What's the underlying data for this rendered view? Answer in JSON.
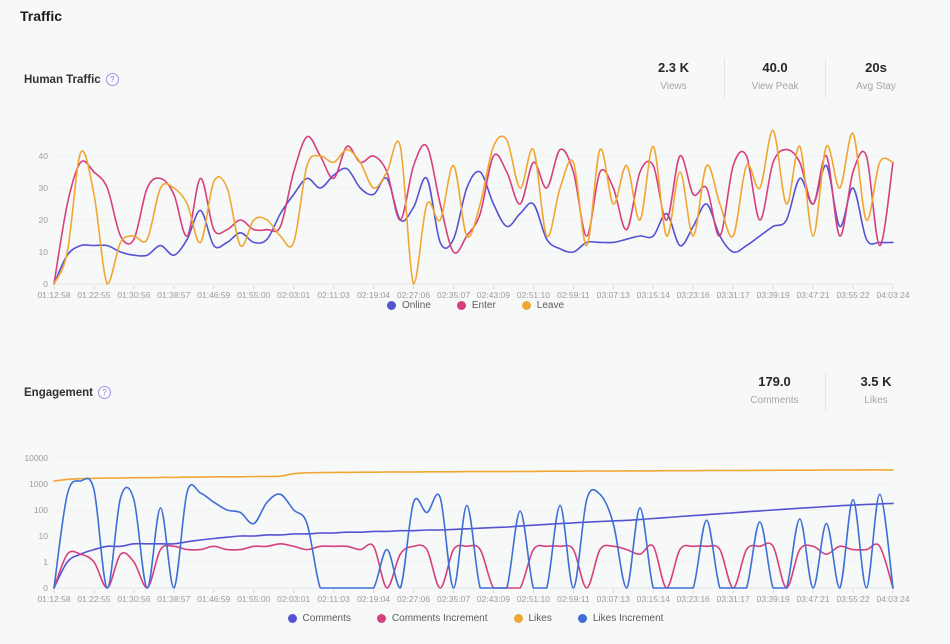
{
  "page": {
    "title": "Traffic"
  },
  "help_icon_glyph": "?",
  "colors": {
    "indigo": "#5553d2",
    "pink": "#d5407f",
    "orange": "#f0a732",
    "blue": "#3e6fd6",
    "axis_text": "#9b9ba1",
    "grid": "#efeff1",
    "baseline": "#e3e3e6"
  },
  "human_traffic": {
    "title": "Human Traffic",
    "stats": [
      {
        "value": "2.3 K",
        "label": "Views"
      },
      {
        "value": "40.0",
        "label": "View Peak"
      },
      {
        "value": "20s",
        "label": "Avg Stay"
      }
    ]
  },
  "engagement": {
    "title": "Engagement",
    "stats": [
      {
        "value": "179.0",
        "label": "Comments"
      },
      {
        "value": "3.5 K",
        "label": "Likes"
      }
    ]
  },
  "chart_data": [
    {
      "type": "line",
      "title": "Human Traffic",
      "scale": "linear",
      "grid": true,
      "legend_position": "bottom",
      "ylim": [
        0,
        50
      ],
      "yticks": [
        0,
        10,
        20,
        30,
        40
      ],
      "x": [
        "01:12:58",
        "01:22:55",
        "01:30:56",
        "01:38:57",
        "01:46:59",
        "01:55:00",
        "02:03:01",
        "02:11:03",
        "02:19:04",
        "02:27:06",
        "02:35:07",
        "02:43:09",
        "02:51:10",
        "02:59:11",
        "03:07:13",
        "03:15:14",
        "03:23:16",
        "03:31:17",
        "03:39:19",
        "03:47:21",
        "03:55:22",
        "04:03:24"
      ],
      "series": [
        {
          "name": "Online",
          "color": "#5553d2",
          "values": [
            0,
            9,
            12,
            12,
            12,
            10,
            9,
            9,
            12,
            9,
            14,
            23,
            12,
            13,
            16,
            13,
            14,
            22,
            28,
            33,
            30,
            34,
            36,
            30,
            28,
            33,
            20,
            24,
            33,
            13,
            14,
            30,
            35,
            25,
            18,
            22,
            25,
            14,
            11,
            10,
            13,
            13,
            13,
            14,
            15,
            15,
            22,
            12,
            18,
            25,
            15,
            10,
            12,
            15,
            18,
            20,
            33,
            25,
            37,
            18,
            30,
            14,
            13,
            13
          ]
        },
        {
          "name": "Enter",
          "color": "#d5407f",
          "values": [
            0,
            25,
            38,
            35,
            30,
            15,
            14,
            30,
            33,
            28,
            15,
            33,
            17,
            17,
            20,
            17,
            17,
            18,
            35,
            46,
            40,
            33,
            43,
            38,
            40,
            35,
            20,
            37,
            43,
            25,
            10,
            15,
            22,
            40,
            35,
            25,
            38,
            30,
            42,
            35,
            15,
            35,
            30,
            17,
            35,
            37,
            20,
            40,
            28,
            30,
            15,
            37,
            40,
            20,
            38,
            42,
            38,
            25,
            40,
            15,
            35,
            40,
            12,
            38
          ]
        },
        {
          "name": "Leave",
          "color": "#f0a732",
          "values": [
            0,
            10,
            41,
            28,
            0,
            13,
            15,
            14,
            30,
            30,
            25,
            13,
            32,
            30,
            12,
            20,
            20,
            15,
            13,
            37,
            40,
            38,
            42,
            38,
            30,
            35,
            43,
            0,
            25,
            20,
            37,
            15,
            25,
            43,
            45,
            30,
            42,
            15,
            30,
            38,
            12,
            42,
            25,
            37,
            20,
            43,
            15,
            35,
            15,
            37,
            25,
            15,
            37,
            30,
            48,
            25,
            43,
            15,
            43,
            30,
            47,
            20,
            38,
            38
          ]
        }
      ]
    },
    {
      "type": "line",
      "title": "Engagement",
      "scale": "log",
      "grid": true,
      "legend_position": "bottom",
      "ylim": [
        0,
        10000
      ],
      "yticks": [
        0,
        1,
        10,
        100,
        1000,
        10000
      ],
      "x": [
        "01:12:58",
        "01:22:55",
        "01:30:56",
        "01:38:57",
        "01:46:59",
        "01:55:00",
        "02:03:01",
        "02:11:03",
        "02:19:04",
        "02:27:06",
        "02:35:07",
        "02:43:09",
        "02:51:10",
        "02:59:11",
        "03:07:13",
        "03:15:14",
        "03:23:16",
        "03:31:17",
        "03:39:19",
        "03:47:21",
        "03:55:22",
        "04:03:24"
      ],
      "series": [
        {
          "name": "Comments",
          "color": "#5553d2",
          "values": [
            0,
            1,
            2,
            3,
            4,
            4,
            5,
            5,
            5,
            5,
            6,
            7,
            8,
            9,
            10,
            10,
            11,
            11,
            12,
            12,
            13,
            13,
            14,
            14,
            15,
            15,
            16,
            16,
            17,
            17,
            18,
            19,
            20,
            21,
            22,
            24,
            26,
            28,
            30,
            32,
            34,
            36,
            38,
            40,
            43,
            47,
            51,
            56,
            61,
            66,
            72,
            78,
            85,
            92,
            100,
            108,
            117,
            126,
            135,
            145,
            155,
            164,
            172,
            179
          ]
        },
        {
          "name": "Comments Increment",
          "color": "#d5407f",
          "values": [
            0,
            2,
            2,
            1,
            0,
            2,
            1,
            0,
            3,
            4,
            3,
            3,
            4,
            3,
            3,
            4,
            4,
            5,
            4,
            3,
            4,
            4,
            4,
            3,
            4,
            0,
            2,
            4,
            3,
            0,
            3,
            4,
            3,
            0,
            0,
            0,
            3,
            4,
            4,
            3,
            0,
            3,
            4,
            3,
            2,
            4,
            0,
            3,
            4,
            4,
            3,
            0,
            3,
            4,
            4,
            0,
            3,
            4,
            2,
            4,
            3,
            3,
            4,
            0
          ]
        },
        {
          "name": "Likes",
          "color": "#f0a732",
          "values": [
            1300,
            1500,
            1600,
            1650,
            1700,
            1700,
            1750,
            1750,
            1800,
            1800,
            1850,
            1850,
            1900,
            1900,
            1900,
            1950,
            1950,
            2000,
            2500,
            2700,
            2750,
            2800,
            2800,
            2850,
            2850,
            2900,
            2900,
            2900,
            2950,
            2950,
            2950,
            3000,
            3000,
            3000,
            3000,
            3050,
            3050,
            3100,
            3100,
            3100,
            3150,
            3150,
            3150,
            3200,
            3200,
            3200,
            3250,
            3250,
            3250,
            3300,
            3300,
            3300,
            3300,
            3350,
            3350,
            3400,
            3400,
            3400,
            3450,
            3450,
            3450,
            3500,
            3500,
            3500
          ]
        },
        {
          "name": "Likes Increment",
          "color": "#3e6fd6",
          "values": [
            0,
            400,
            1300,
            600,
            0,
            300,
            250,
            0,
            120,
            0,
            500,
            450,
            200,
            100,
            80,
            30,
            200,
            400,
            100,
            30,
            0,
            0,
            0,
            0,
            0,
            3,
            0,
            200,
            80,
            300,
            0,
            150,
            0,
            0,
            0,
            90,
            0,
            0,
            150,
            0,
            250,
            400,
            30,
            0,
            120,
            0,
            0,
            0,
            0,
            40,
            0,
            0,
            0,
            35,
            0,
            0,
            45,
            0,
            30,
            0,
            250,
            0,
            400,
            0
          ]
        }
      ]
    }
  ]
}
